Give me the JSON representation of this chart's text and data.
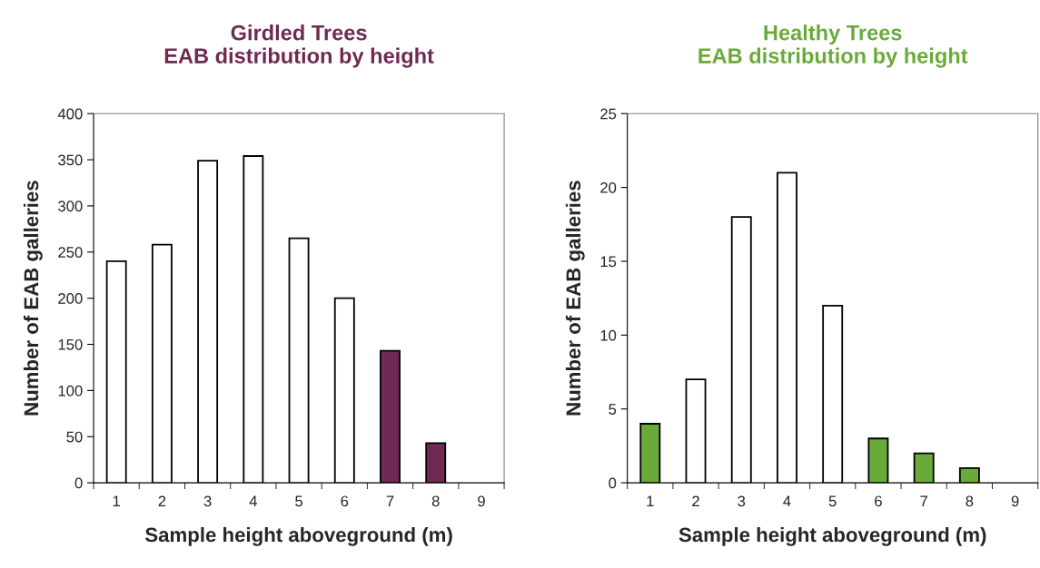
{
  "chart_data": [
    {
      "type": "bar",
      "title": "Girdled Trees\nEAB distribution by height",
      "xlabel": "Sample height aboveground (m)",
      "ylabel": "Number of EAB galleries",
      "categories": [
        "1",
        "2",
        "3",
        "4",
        "5",
        "6",
        "7",
        "8",
        "9"
      ],
      "values": [
        240,
        258,
        349,
        354,
        265,
        200,
        143,
        43,
        null
      ],
      "colors": [
        "#ffffff",
        "#ffffff",
        "#ffffff",
        "#ffffff",
        "#ffffff",
        "#ffffff",
        "#6e2a52",
        "#6e2a52",
        "#ffffff"
      ],
      "ylim": [
        0,
        400
      ],
      "yticks": [
        0,
        50,
        100,
        150,
        200,
        250,
        300,
        350,
        400
      ]
    },
    {
      "type": "bar",
      "title": "Healthy Trees\nEAB distribution by height",
      "xlabel": "Sample height aboveground (m)",
      "ylabel": "Number of EAB galleries",
      "categories": [
        "1",
        "2",
        "3",
        "4",
        "5",
        "6",
        "7",
        "8",
        "9"
      ],
      "values": [
        4,
        7,
        18,
        21,
        12,
        3,
        2,
        1,
        null
      ],
      "colors": [
        "#6aaa3a",
        "#ffffff",
        "#ffffff",
        "#ffffff",
        "#ffffff",
        "#6aaa3a",
        "#6aaa3a",
        "#6aaa3a",
        "#ffffff"
      ],
      "ylim": [
        0,
        25
      ],
      "yticks": [
        0,
        5,
        10,
        15,
        20,
        25
      ]
    }
  ]
}
